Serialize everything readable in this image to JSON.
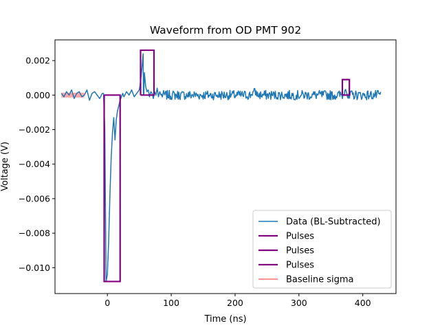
{
  "chart_data": {
    "type": "line",
    "title": "Waveform from OD PMT 902",
    "xlabel": "Time (ns)",
    "ylabel": "Voltage (V)",
    "xlim": [
      -82,
      452
    ],
    "ylim": [
      -0.0115,
      0.0032
    ],
    "xticks": [
      0,
      100,
      200,
      300,
      400
    ],
    "xtick_labels": [
      "0",
      "100",
      "200",
      "300",
      "400"
    ],
    "yticks": [
      -0.01,
      -0.008,
      -0.006,
      -0.004,
      -0.002,
      0.0,
      0.002
    ],
    "ytick_labels": [
      "−0.010",
      "−0.008",
      "−0.006",
      "−0.004",
      "−0.002",
      "0.000",
      "0.002"
    ],
    "grid": false,
    "legend_position": "lower-right",
    "legend": [
      "Data (BL-Subtracted)",
      "Pulses",
      "Pulses",
      "Pulses",
      "Baseline sigma"
    ],
    "colors": {
      "data": "#1f77b4",
      "pulses": "#800080",
      "baseline_sigma": "#ff9896"
    },
    "series": [
      {
        "name": "Data (BL-Subtracted)",
        "points": [
          [
            -72,
            0.0001
          ],
          [
            -68,
            -0.0001
          ],
          [
            -64,
            0.0002
          ],
          [
            -60,
            0.0
          ],
          [
            -56,
            0.0003
          ],
          [
            -52,
            -0.0002
          ],
          [
            -48,
            0.0001
          ],
          [
            -44,
            0.0002
          ],
          [
            -40,
            -0.0001
          ],
          [
            -36,
            0.0
          ],
          [
            -32,
            0.0003
          ],
          [
            -28,
            -0.0003
          ],
          [
            -24,
            0.0001
          ],
          [
            -20,
            0.0002
          ],
          [
            -16,
            0.0
          ],
          [
            -12,
            -0.0002
          ],
          [
            -8,
            0.0001
          ],
          [
            -6,
            0.0001
          ],
          [
            -4,
            -0.002
          ],
          [
            -3,
            -0.0065
          ],
          [
            -2,
            -0.0108
          ],
          [
            0,
            -0.0104
          ],
          [
            2,
            -0.0085
          ],
          [
            4,
            -0.0058
          ],
          [
            6,
            -0.0036
          ],
          [
            8,
            -0.0022
          ],
          [
            10,
            -0.0013
          ],
          [
            12,
            -0.0026
          ],
          [
            14,
            -0.0014
          ],
          [
            16,
            -0.0009
          ],
          [
            18,
            -0.0006
          ],
          [
            20,
            -0.0003
          ],
          [
            22,
            -0.0001
          ],
          [
            24,
            0.0001
          ],
          [
            26,
            -0.0001
          ],
          [
            30,
            0.0002
          ],
          [
            34,
            0.0
          ],
          [
            38,
            0.0003
          ],
          [
            42,
            -0.0001
          ],
          [
            46,
            0.0001
          ],
          [
            50,
            0.0003
          ],
          [
            52,
            0.0008
          ],
          [
            54,
            0.0015
          ],
          [
            56,
            0.0024
          ],
          [
            58,
            0.0013
          ],
          [
            60,
            0.0005
          ],
          [
            62,
            0.0002
          ],
          [
            64,
            0.0003
          ],
          [
            66,
            -0.0001
          ],
          [
            68,
            0.0002
          ],
          [
            70,
            0.0001
          ],
          [
            72,
            -0.0002
          ],
          [
            74,
            0.0002
          ],
          [
            76,
            0.0
          ],
          [
            78,
            0.0004
          ],
          [
            80,
            -0.0001
          ],
          [
            82,
            0.0002
          ],
          [
            84,
            0.0
          ],
          [
            56.5,
            0.0
          ],
          [
            57,
            0.0
          ]
        ],
        "note_order": "x ascending"
      },
      {
        "name": "Pulses",
        "rect": {
          "x0": -5,
          "x1": 20,
          "y0": 0.0,
          "y1": -0.0108
        }
      },
      {
        "name": "Pulses",
        "rect": {
          "x0": 52,
          "x1": 73,
          "y0": 0.0,
          "y1": 0.0026
        }
      },
      {
        "name": "Pulses",
        "rect": {
          "x0": 368,
          "x1": 379,
          "y0": 0.0,
          "y1": 0.0009
        }
      },
      {
        "name": "Baseline sigma",
        "x_range": [
          -72,
          -36
        ],
        "y_band": [
          -0.00014,
          0.00014
        ]
      }
    ]
  }
}
